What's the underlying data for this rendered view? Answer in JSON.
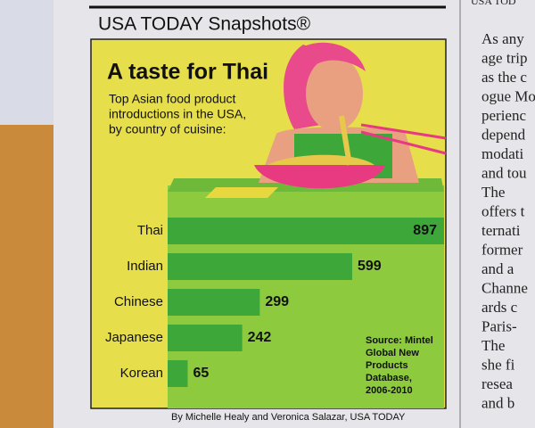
{
  "header": "USA TODAY Snapshots®",
  "chart_data": {
    "type": "hbar",
    "title": "A taste for Thai",
    "subtitle": [
      "Top Asian food product",
      "introductions in the USA,",
      "by country of cuisine:"
    ],
    "categories": [
      "Thai",
      "Indian",
      "Chinese",
      "Japanese",
      "Korean"
    ],
    "values": [
      897,
      599,
      299,
      242,
      65
    ],
    "color": "#3da73a",
    "source": [
      "Source: Mintel",
      "Global New",
      "Products",
      "Database,",
      "2006-2010"
    ]
  },
  "byline": "By Michelle Healy and Veronica Salazar, USA TODAY",
  "side_text": [
    "USA TOD",
    "As any",
    "age trip",
    "as the c",
    "ogue Mo",
    "perienc",
    "depend",
    "modati",
    "and tou",
    "The",
    "offers t",
    "ternati",
    "former",
    "and a",
    "Channe",
    "ards c",
    "Paris-",
    "The",
    "she fi",
    "resea",
    "and b"
  ]
}
